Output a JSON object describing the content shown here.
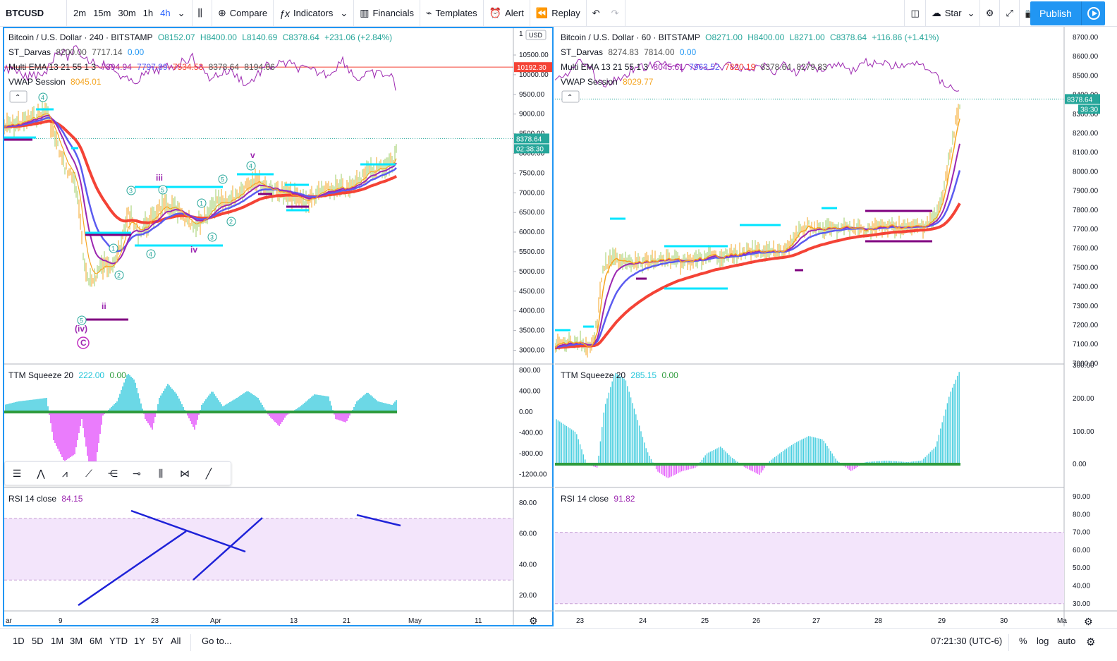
{
  "toolbar": {
    "symbol": "BTCUSD",
    "intervals": [
      "2m",
      "15m",
      "30m",
      "1h",
      "4h"
    ],
    "active_interval": "4h",
    "compare": "Compare",
    "indicators": "Indicators",
    "financials": "Financials",
    "templates": "Templates",
    "alert": "Alert",
    "replay": "Replay",
    "layout_name": "Star",
    "publish": "Publish"
  },
  "left_chart": {
    "title": "Bitcoin / U.S. Dollar · 240 · BITSTAMP",
    "ohlc": {
      "o": "O8152.07",
      "h": "H8400.00",
      "l": "L8140.69",
      "c": "C8378.64",
      "chg": "+231.06 (+2.84%)"
    },
    "indicators": [
      {
        "name": "ST_Darvas",
        "values": [
          "8200.00",
          "7717.14",
          "0.00"
        ]
      },
      {
        "name": "Multi EMA 13 21 55 1 3",
        "values": [
          "7894.94",
          "7797.89",
          "7534.53",
          "8378.64",
          "8194.66"
        ]
      },
      {
        "name": "VWAP Session",
        "values": [
          "8045.01"
        ]
      }
    ],
    "price_axis": [
      "10500.00",
      "10000.00",
      "9500.00",
      "9000.00",
      "8500.00",
      "8000.00",
      "7500.00",
      "7000.00",
      "6500.00",
      "6000.00",
      "5500.00",
      "5000.00",
      "4500.00",
      "4000.00",
      "3500.00",
      "3000.00"
    ],
    "currency": "USD",
    "scale_top": "1",
    "last_price": "8378.64",
    "countdown": "02:38:30",
    "alert_price": "10192.30",
    "wave_labels": [
      "iii",
      "iv",
      "v",
      "ii",
      "(iv)",
      "C"
    ],
    "wave_numbers": [
      "4",
      "3",
      "5",
      "1",
      "2",
      "4",
      "5",
      "1",
      "3",
      "2",
      "4",
      "5"
    ],
    "squeeze": {
      "name": "TTM Squeeze 20",
      "v1": "222.00",
      "v2": "0.00",
      "axis": [
        "800.00",
        "400.00",
        "0.00",
        "-400.00",
        "-800.00",
        "-1200.00"
      ]
    },
    "rsi": {
      "name": "RSI 14 close",
      "value": "84.15",
      "axis": [
        "80.00",
        "60.00",
        "40.00",
        "20.00"
      ]
    },
    "time_axis": [
      "ar",
      "9",
      "23",
      "Apr",
      "13",
      "21",
      "May",
      "11"
    ]
  },
  "right_chart": {
    "title": "Bitcoin / U.S. Dollar · 60 · BITSTAMP",
    "ohlc": {
      "o": "O8271.00",
      "h": "H8400.00",
      "l": "L8271.00",
      "c": "C8378.64",
      "chg": "+116.86 (+1.41%)"
    },
    "indicators": [
      {
        "name": "ST_Darvas",
        "values": [
          "8274.83",
          "7814.00",
          "0.00"
        ]
      },
      {
        "name": "Multi EMA 13 21 55 1 3",
        "values": [
          "8045.61",
          "7963.52",
          "7820.19",
          "8378.64",
          "8279.83"
        ]
      },
      {
        "name": "VWAP Session",
        "values": [
          "8029.77"
        ]
      }
    ],
    "price_axis": [
      "8700.00",
      "8600.00",
      "8500.00",
      "8400.00",
      "8300.00",
      "8200.00",
      "8100.00",
      "8000.00",
      "7900.00",
      "7800.00",
      "7700.00",
      "7600.00",
      "7500.00",
      "7400.00",
      "7300.00",
      "7200.00",
      "7100.00",
      "7000.00"
    ],
    "currency": "USD",
    "last_price": "8378.64",
    "countdown": "38:30",
    "squeeze": {
      "name": "TTM Squeeze 20",
      "v1": "285.15",
      "v2": "0.00",
      "axis": [
        "300.00",
        "200.00",
        "100.00",
        "0.00"
      ]
    },
    "rsi": {
      "name": "RSI 14 close",
      "value": "91.82",
      "axis": [
        "90.00",
        "80.00",
        "70.00",
        "60.00",
        "50.00",
        "40.00",
        "30.00"
      ]
    },
    "time_axis": [
      "23",
      "24",
      "25",
      "26",
      "27",
      "28",
      "29",
      "30",
      "Ma"
    ]
  },
  "bottom": {
    "ranges": [
      "1D",
      "5D",
      "1M",
      "3M",
      "6M",
      "YTD",
      "1Y",
      "5Y",
      "All"
    ],
    "goto": "Go to...",
    "clock": "07:21:30 (UTC-6)",
    "percent": "%",
    "log": "log",
    "auto": "auto"
  },
  "colors": {
    "ema_fast": "#f5a623",
    "ema_mid": "#9c27b0",
    "ema_mid2": "#5b5bf0",
    "ema_slow": "#f44336",
    "darvas": "#00e5ff",
    "darvas_low": "#800080",
    "rsi": "#9c27b0",
    "rsi_band": "#f3e5fb",
    "squeeze_up": "#26c6da",
    "squeeze_down": "#e040fb",
    "zero": "#2e9b3c",
    "accent": "#2196f3"
  }
}
